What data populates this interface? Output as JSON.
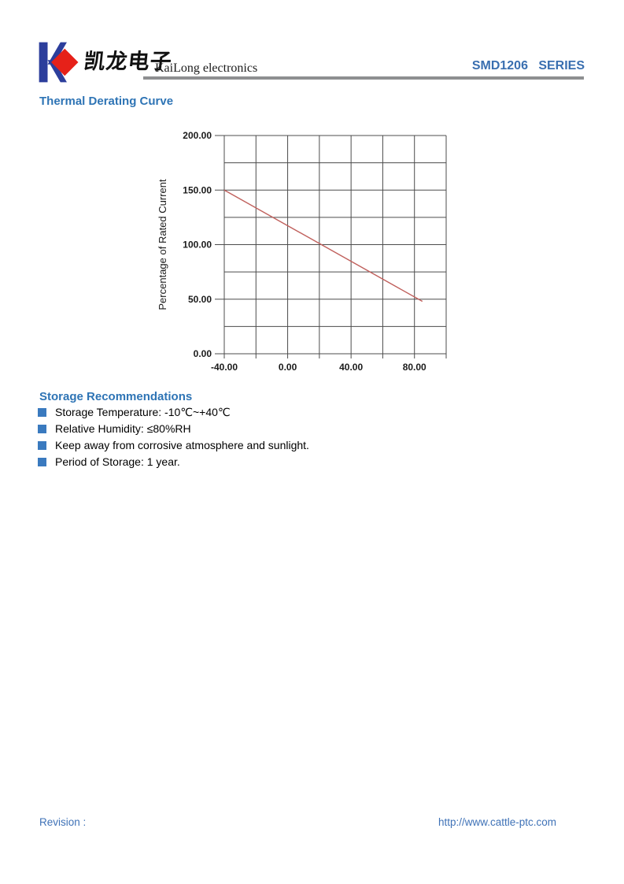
{
  "header": {
    "brand_cn": "凯龙电子",
    "brand_en": "KaiLong electronics",
    "series_label": "SMD1206   SERIES"
  },
  "sections": {
    "thermal": {
      "title": "Thermal Derating Curve"
    },
    "storage": {
      "title": "Storage Recommendations",
      "items": [
        {
          "text": "Storage Temperature: -10℃~+40℃"
        },
        {
          "text": "Relative Humidity: ≤80%RH"
        },
        {
          "text": "Keep away from corrosive atmosphere and sunlight."
        },
        {
          "text": "Period of Storage: 1 year."
        }
      ]
    }
  },
  "footer": {
    "revision_label": "Revision :",
    "url": "http://www.cattle-ptc.com"
  },
  "colors": {
    "heading-blue": "#2e74b5",
    "series-blue": "#3a6fb0",
    "footer-blue": "#3f72b7",
    "bullet-blue": "#3a7abf",
    "logo-blue": "#2c3e9c",
    "logo-red": "#e62119",
    "rule-gray": "#8e8f91",
    "grid-gray": "#4c4c4c",
    "line-red": "#c0605c"
  },
  "chart_data": {
    "type": "line",
    "title": "",
    "xlabel": "",
    "ylabel": "Percentage of Rated Current",
    "xlim": [
      -40,
      100
    ],
    "ylim": [
      0,
      200
    ],
    "x_grid_step": 20,
    "y_grid_step": 25,
    "grid": true,
    "legend": "none",
    "x_tick_values": [
      -40,
      0,
      40,
      80
    ],
    "x_tick_labels": [
      "-40.00",
      "0.00",
      "40.00",
      "80.00"
    ],
    "y_tick_values": [
      0,
      50,
      100,
      150,
      200
    ],
    "y_tick_labels": [
      "0.00",
      "50.00",
      "100.00",
      "150.00",
      "200.00"
    ],
    "series": [
      {
        "name": "thermal-derating",
        "color": "#c0605c",
        "points": [
          [
            -40,
            150
          ],
          [
            85,
            48
          ]
        ]
      }
    ]
  }
}
